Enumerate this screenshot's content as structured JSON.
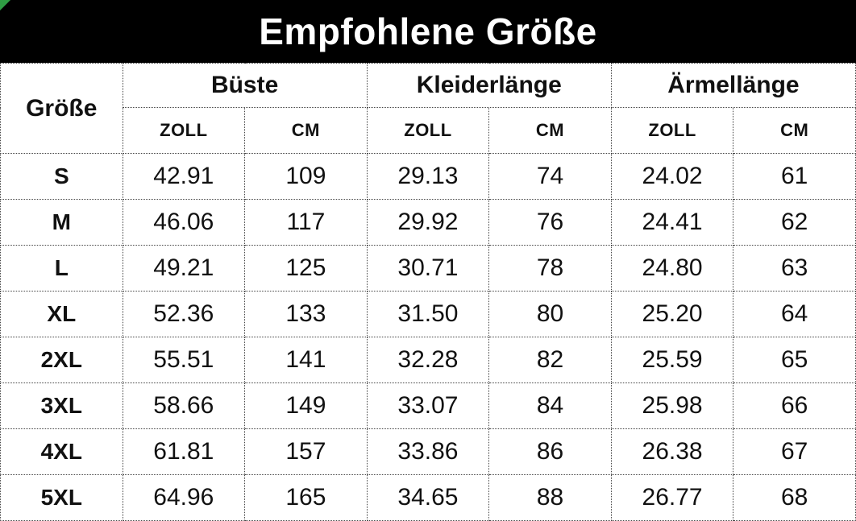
{
  "title": "Empfohlene Größe",
  "colors": {
    "title_bg": "#000000",
    "title_text": "#ffffff",
    "corner_triangle_green": "#2f9e44",
    "cell_text": "#111111",
    "border": "#444444"
  },
  "table": {
    "size_column_header": "Größe",
    "groups": [
      {
        "label": "Büste"
      },
      {
        "label": "Kleiderlänge"
      },
      {
        "label": "Ärmellänge"
      }
    ],
    "unit_headers": [
      "ZOLL",
      "CM"
    ],
    "rows": [
      {
        "size": "S",
        "values": [
          "42.91",
          "109",
          "29.13",
          "74",
          "24.02",
          "61"
        ]
      },
      {
        "size": "M",
        "values": [
          "46.06",
          "117",
          "29.92",
          "76",
          "24.41",
          "62"
        ]
      },
      {
        "size": "L",
        "values": [
          "49.21",
          "125",
          "30.71",
          "78",
          "24.80",
          "63"
        ]
      },
      {
        "size": "XL",
        "values": [
          "52.36",
          "133",
          "31.50",
          "80",
          "25.20",
          "64"
        ]
      },
      {
        "size": "2XL",
        "values": [
          "55.51",
          "141",
          "32.28",
          "82",
          "25.59",
          "65"
        ]
      },
      {
        "size": "3XL",
        "values": [
          "58.66",
          "149",
          "33.07",
          "84",
          "25.98",
          "66"
        ]
      },
      {
        "size": "4XL",
        "values": [
          "61.81",
          "157",
          "33.86",
          "86",
          "26.38",
          "67"
        ]
      },
      {
        "size": "5XL",
        "values": [
          "64.96",
          "165",
          "34.65",
          "88",
          "26.77",
          "68"
        ]
      }
    ]
  }
}
